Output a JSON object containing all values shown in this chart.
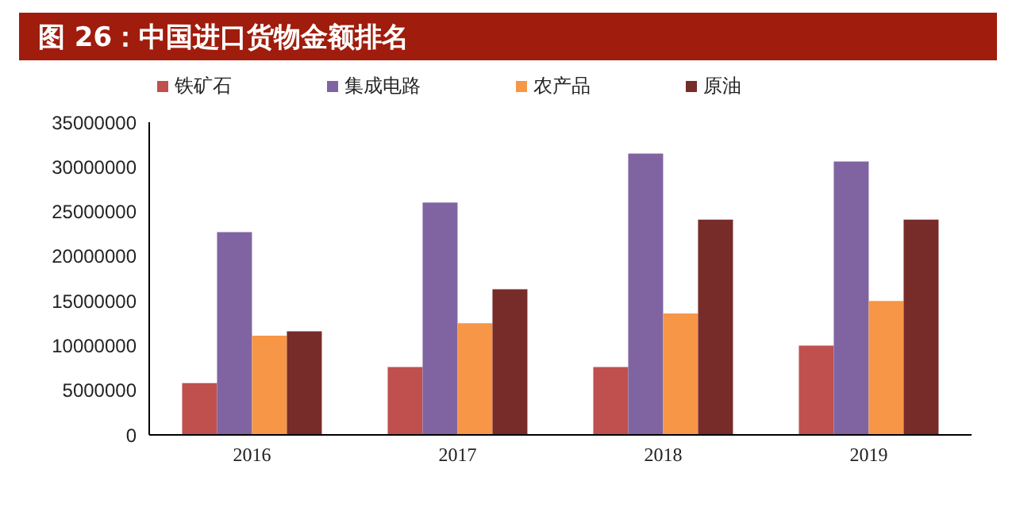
{
  "chart_data": {
    "type": "bar",
    "title": "图 26：中国进口货物金额排名",
    "categories": [
      "2016",
      "2017",
      "2018",
      "2019"
    ],
    "series": [
      {
        "name": "铁矿石",
        "color": "#c0504d",
        "values": [
          5800000,
          7600000,
          7600000,
          10000000
        ]
      },
      {
        "name": "集成电路",
        "color": "#8064a2",
        "values": [
          22700000,
          26000000,
          31500000,
          30600000
        ]
      },
      {
        "name": "农产品",
        "color": "#f79646",
        "values": [
          11100000,
          12500000,
          13600000,
          15000000
        ]
      },
      {
        "name": "原油",
        "color": "#772c2a",
        "values": [
          11600000,
          16300000,
          24100000,
          24100000
        ]
      }
    ],
    "ylim": [
      0,
      35000000
    ],
    "yticks": [
      0,
      5000000,
      10000000,
      15000000,
      20000000,
      25000000,
      30000000,
      35000000
    ],
    "grid": false,
    "legend": "top"
  }
}
